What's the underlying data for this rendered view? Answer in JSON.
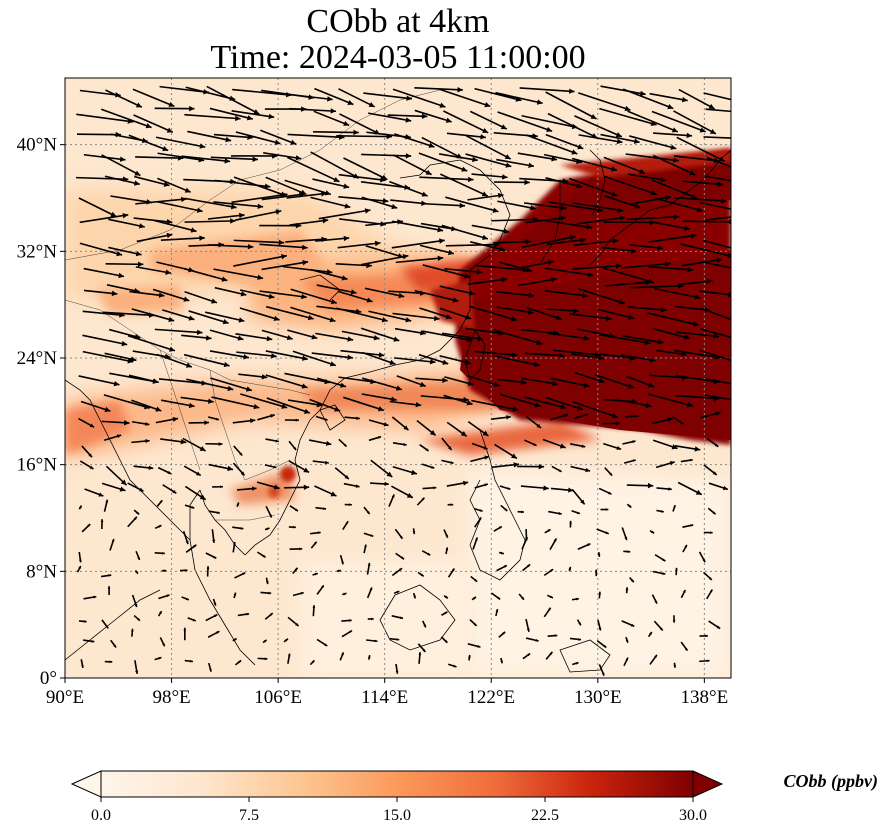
{
  "title": {
    "line1": "CObb at 4km",
    "line2": "Time: 2024-03-05 11:00:00"
  },
  "map": {
    "lon_range": [
      90,
      140
    ],
    "lat_range": [
      0,
      45
    ],
    "x_ticks": [
      "90°E",
      "98°E",
      "106°E",
      "114°E",
      "122°E",
      "130°E",
      "138°E"
    ],
    "y_ticks": [
      "0°",
      "8°N",
      "16°N",
      "24°N",
      "32°N",
      "40°N"
    ],
    "x_tick_values": [
      90,
      98,
      106,
      114,
      122,
      130,
      138
    ],
    "y_tick_values": [
      0,
      8,
      16,
      24,
      32,
      40
    ],
    "gridlines": true,
    "field": "CObb",
    "level": "4km",
    "vector_overlay": "wind",
    "colormap": [
      "#fff5eb",
      "#fdd9b5",
      "#fdb07a",
      "#f6834f",
      "#e04b2a",
      "#b81608",
      "#7f0000"
    ]
  },
  "colorbar": {
    "label": "CObb (ppbv)",
    "ticks": [
      "0.0",
      "7.5",
      "15.0",
      "22.5",
      "30.0"
    ],
    "tick_values": [
      0,
      7.5,
      15,
      22.5,
      30
    ],
    "range": [
      0,
      30
    ],
    "extend": "both"
  }
}
